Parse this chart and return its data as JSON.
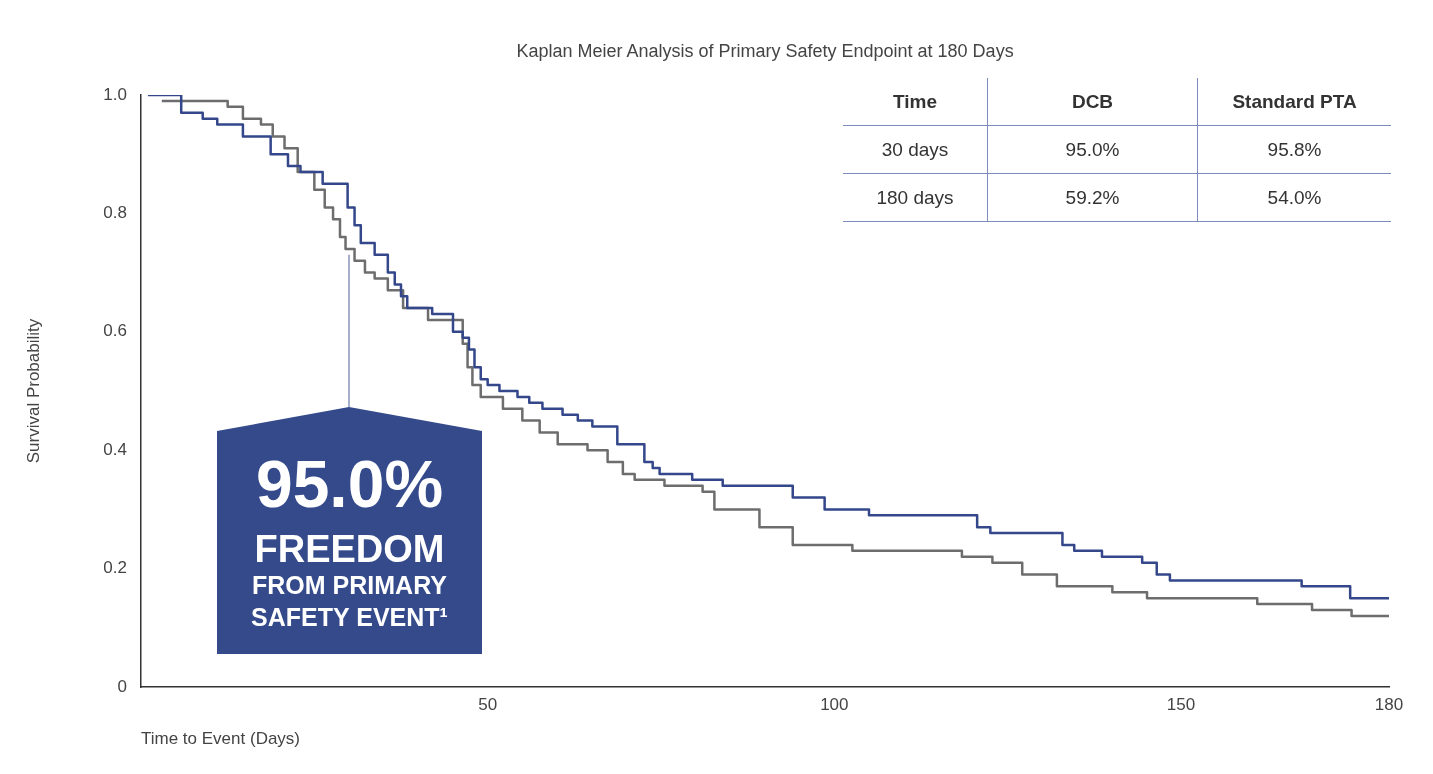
{
  "chart_data": {
    "type": "step",
    "title": "Kaplan Meier Analysis of Primary Safety Endpoint at 180 Days",
    "xlabel": "Time to Event (Days)",
    "ylabel": "Survival Probability",
    "xlim": [
      0,
      180
    ],
    "xticks": [
      50,
      100,
      150,
      180
    ],
    "ylim": [
      0,
      1
    ],
    "yticks": [
      {
        "value": 0,
        "label": "0"
      },
      0.2,
      0.4,
      0.6,
      0.8,
      {
        "value": 1,
        "label": "1.0"
      }
    ],
    "grid": false,
    "legend": false,
    "marker": "none",
    "line_style": "solid",
    "series": [
      {
        "color": "#33478a",
        "x": [
          1,
          5.8,
          8.9,
          11,
          14.7,
          18.7,
          21.2,
          23,
          26.2,
          29.8,
          30.8,
          31.7,
          33.7,
          35.6,
          36.6,
          37.5,
          38.4,
          42,
          45,
          46.4,
          47.3,
          48.1,
          49,
          50,
          51.7,
          54.3,
          56,
          57.9,
          60.8,
          63,
          65.1,
          68.7,
          72.6,
          73.8,
          74.8,
          79.5,
          83.9,
          94,
          98.6,
          105,
          120.6,
          122.5,
          132.9,
          134.6,
          138.6,
          144.4,
          146.5,
          148.4,
          167.4,
          174.4,
          180
        ],
        "values": [
          1,
          0.97,
          0.96,
          0.95,
          0.93,
          0.9,
          0.88,
          0.87,
          0.85,
          0.81,
          0.78,
          0.75,
          0.73,
          0.7,
          0.68,
          0.66,
          0.64,
          0.63,
          0.6,
          0.59,
          0.57,
          0.54,
          0.52,
          0.51,
          0.5,
          0.49,
          0.48,
          0.47,
          0.46,
          0.45,
          0.44,
          0.41,
          0.38,
          0.37,
          0.36,
          0.35,
          0.34,
          0.32,
          0.3,
          0.29,
          0.27,
          0.26,
          0.24,
          0.23,
          0.22,
          0.21,
          0.19,
          0.18,
          0.17,
          0.15,
          0.15
        ]
      },
      {
        "color": "#6d6d6d",
        "x": [
          3,
          12.5,
          14.7,
          17.3,
          19,
          20.7,
          22.6,
          25,
          26.5,
          27.7,
          28.7,
          29.5,
          30.8,
          32.3,
          33.7,
          35.6,
          37.8,
          41.4,
          46.4,
          47.1,
          47.8,
          49,
          52.2,
          55,
          57.5,
          60.1,
          64.4,
          67.3,
          69.5,
          71.2,
          75.5,
          81,
          82.7,
          89.2,
          94,
          102.6,
          118.4,
          122.8,
          127.1,
          132.1,
          140.1,
          145.1,
          161,
          168.9,
          174.6,
          180
        ],
        "values": [
          0.99,
          0.98,
          0.96,
          0.95,
          0.93,
          0.91,
          0.87,
          0.84,
          0.81,
          0.79,
          0.76,
          0.74,
          0.72,
          0.7,
          0.69,
          0.67,
          0.64,
          0.62,
          0.58,
          0.54,
          0.51,
          0.49,
          0.47,
          0.45,
          0.43,
          0.41,
          0.4,
          0.38,
          0.36,
          0.35,
          0.34,
          0.33,
          0.3,
          0.27,
          0.24,
          0.23,
          0.22,
          0.21,
          0.19,
          0.17,
          0.16,
          0.15,
          0.14,
          0.13,
          0.12,
          0.12
        ]
      }
    ],
    "annotations": [
      {
        "text": "95.0%\nFREEDOM\nFROM PRIMARY\nSAFETY EVENT¹",
        "x": 30,
        "y": 0.73
      },
      "Time",
      "DCB",
      "Standard PTA",
      "30 days",
      "95.0%",
      "95.8%",
      "180 days",
      "59.2%",
      "54.0%"
    ]
  }
}
